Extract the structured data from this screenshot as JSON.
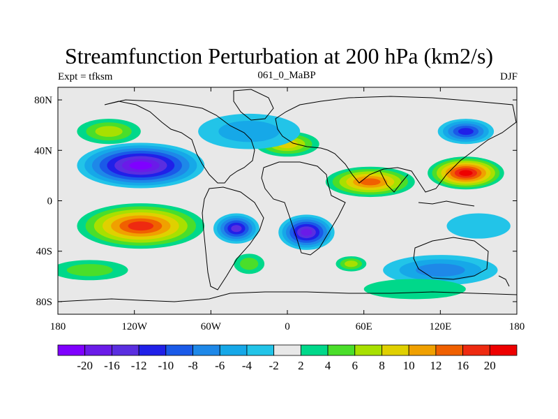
{
  "title": "Streamfunction Perturbation at 200 hPa (km2/s)",
  "left_label": "Expt = tfksm",
  "center_label": "061_0_MaBP",
  "right_label": "DJF",
  "x_ticks": [
    {
      "label": "180",
      "lon": -180
    },
    {
      "label": "120W",
      "lon": -120
    },
    {
      "label": "60W",
      "lon": -60
    },
    {
      "label": "0",
      "lon": 0
    },
    {
      "label": "60E",
      "lon": 60
    },
    {
      "label": "120E",
      "lon": 120
    },
    {
      "label": "180",
      "lon": 180
    }
  ],
  "y_ticks": [
    {
      "label": "80N",
      "lat": 80
    },
    {
      "label": "40N",
      "lat": 40
    },
    {
      "label": "0",
      "lat": 0
    },
    {
      "label": "40S",
      "lat": -40
    },
    {
      "label": "80S",
      "lat": -80
    }
  ],
  "colorbar": {
    "colors": [
      "#7f00ff",
      "#6a1be8",
      "#5a2ee0",
      "#2020e8",
      "#1a5ae8",
      "#1e88e8",
      "#16a8e8",
      "#22c4e8",
      "#e8e8e8",
      "#00d88a",
      "#4ade2a",
      "#a8e000",
      "#e0d000",
      "#f0a000",
      "#f06000",
      "#ee2a10",
      "#ee0000"
    ],
    "labels": [
      "-20",
      "-16",
      "-12",
      "-10",
      "-8",
      "-6",
      "-4",
      "-2",
      "2",
      "4",
      "6",
      "8",
      "10",
      "12",
      "16",
      "20"
    ]
  },
  "anomalies": [
    {
      "lon": -115,
      "lat": 28,
      "value": -22,
      "rx": 50,
      "ry": 18
    },
    {
      "lon": -115,
      "lat": -20,
      "value": 18,
      "rx": 50,
      "ry": 18
    },
    {
      "lon": -140,
      "lat": 55,
      "value": 6,
      "rx": 25,
      "ry": 10
    },
    {
      "lon": -155,
      "lat": -55,
      "value": 4,
      "rx": 30,
      "ry": 8
    },
    {
      "lon": -40,
      "lat": -22,
      "value": -14,
      "rx": 18,
      "ry": 12
    },
    {
      "lon": 15,
      "lat": -25,
      "value": -18,
      "rx": 22,
      "ry": 14
    },
    {
      "lon": 65,
      "lat": 15,
      "value": 12,
      "rx": 35,
      "ry": 12
    },
    {
      "lon": 140,
      "lat": 22,
      "value": 20,
      "rx": 30,
      "ry": 13
    },
    {
      "lon": 0,
      "lat": 45,
      "value": 9,
      "rx": 25,
      "ry": 10
    },
    {
      "lon": 140,
      "lat": 55,
      "value": -10,
      "rx": 22,
      "ry": 10
    },
    {
      "lon": -30,
      "lat": 55,
      "value": -4,
      "rx": 40,
      "ry": 14
    },
    {
      "lon": -30,
      "lat": -50,
      "value": 5,
      "rx": 12,
      "ry": 8
    },
    {
      "lon": 50,
      "lat": -50,
      "value": 6,
      "rx": 12,
      "ry": 6
    },
    {
      "lon": 120,
      "lat": -55,
      "value": -6,
      "rx": 45,
      "ry": 12
    },
    {
      "lon": 150,
      "lat": -20,
      "value": -3,
      "rx": 25,
      "ry": 10
    },
    {
      "lon": 100,
      "lat": -70,
      "value": 3,
      "rx": 40,
      "ry": 8
    }
  ]
}
